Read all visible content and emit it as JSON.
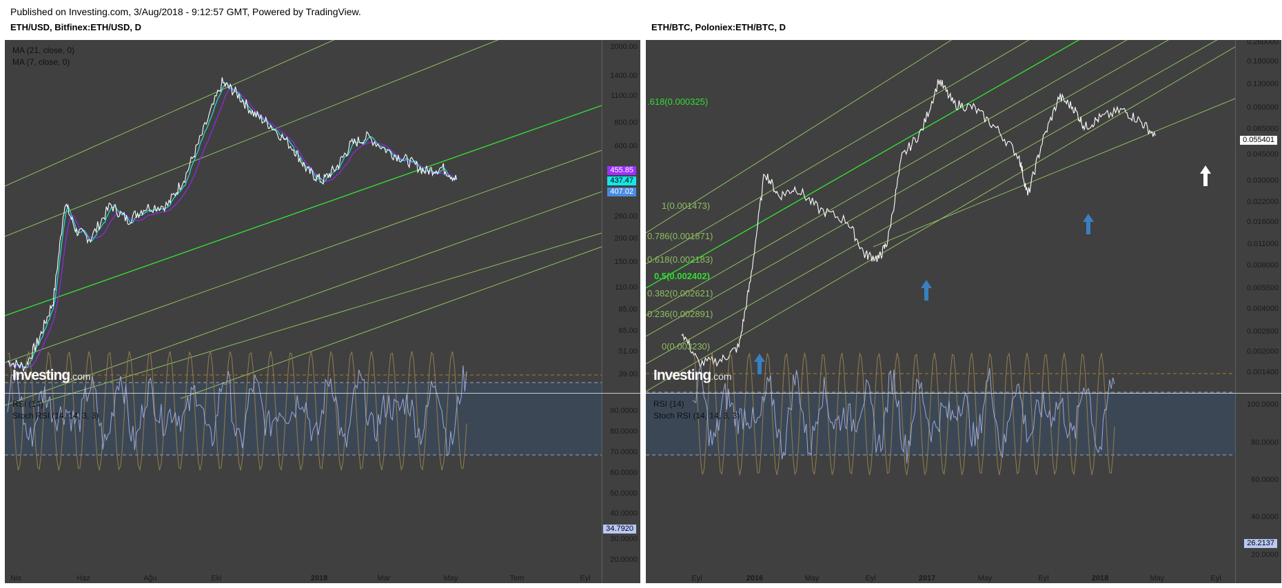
{
  "header": {
    "published": "Published on Investing.com, 3/Aug/2018 - 9:12:57 GMT, Powered by TradingView."
  },
  "logo": {
    "brand": "Investing",
    "suffix": ".com"
  },
  "colors": {
    "panel_bg": "#404040",
    "channel": "#8fbf5f",
    "channel_bright": "#33dd33",
    "price": "#ffffff",
    "ma21": "#8a2be2",
    "ma7": "#2ad4d4",
    "rsi_band": "#3c4756",
    "rsi_line": "#9aa9d8",
    "stoch_line": "#8c7a4e",
    "arrow": "#3a7fc0"
  },
  "left_chart": {
    "title": "ETH/USD, Bitfinex:ETH/USD, D",
    "legend": [
      "MA (21, close, 0)",
      "MA (7, close, 0)"
    ],
    "indicator_legend": [
      "RSI (14)",
      "Stoch RSI (14, 14, 3, 3)"
    ],
    "y_ticks": [
      "2000.00",
      "1400.00",
      "1100.00",
      "800.00",
      "600.00",
      "455.85",
      "437.47",
      "407.02",
      "260.00",
      "200.00",
      "150.00",
      "110.00",
      "85.00",
      "65.00",
      "51.00",
      "39.00"
    ],
    "price_tags": [
      {
        "label": "455.85",
        "color": "#9b30ff"
      },
      {
        "label": "437.47",
        "color": "#15e6e6"
      },
      {
        "label": "407.02",
        "color": "#4a8ae0"
      }
    ],
    "rsi_ticks": [
      "90.0000",
      "80.0000",
      "70.0000",
      "60.0000",
      "50.0000",
      "40.0000",
      "34.7920",
      "30.0000",
      "20.0000"
    ],
    "rsi_tag": "34.7920",
    "x_labels": [
      "Nis",
      "Haz",
      "Ağu",
      "Eki",
      "2018",
      "Mar",
      "May",
      "Tem",
      "Eyl"
    ]
  },
  "right_chart": {
    "title": "ETH/BTC, Poloniex:ETH/BTC, D",
    "indicator_legend": [
      "RSI (14)",
      "Stoch RSI (14, 14, 3, 3)"
    ],
    "y_ticks": [
      "0.260000",
      "0.180000",
      "0.130000",
      "0.090000",
      "0.065000",
      "0.055401",
      "0.045000",
      "0.030000",
      "0.022000",
      "0.016000",
      "0.011000",
      "0.008000",
      "0.005500",
      "0.004000",
      "0.002800",
      "0.002000",
      "0.001400"
    ],
    "price_tag": "0.055401",
    "fib_labels": [
      {
        "text": ".618(0.000325)",
        "bright": true
      },
      {
        "text": "1(0.001473)",
        "bright": false
      },
      {
        "text": "0.786(0.001871)",
        "bright": false
      },
      {
        "text": "0.618(0.002183)",
        "bright": false
      },
      {
        "text": "0.5(0.002402)",
        "bright": true
      },
      {
        "text": "0.382(0.002621)",
        "bright": false
      },
      {
        "text": "0.236(0.002891)",
        "bright": false
      },
      {
        "text": "0(0.003230)",
        "bright": false
      }
    ],
    "rsi_ticks": [
      "100.0000",
      "80.0000",
      "60.0000",
      "40.0000",
      "26.2137",
      "20.0000"
    ],
    "rsi_tag": "26.2137",
    "x_labels": [
      "Eyl",
      "2016",
      "May",
      "Eyl",
      "2017",
      "May",
      "Eyl",
      "2018",
      "May",
      "Eyl"
    ]
  },
  "chart_data": [
    {
      "type": "line",
      "title": "ETH/USD, Bitfinex:ETH/USD, D",
      "scale": "log",
      "x": [
        "Nis",
        "Haz",
        "Ağu",
        "Eki",
        "2018",
        "Mar",
        "May",
        "Tem",
        "Eyl"
      ],
      "series": [
        {
          "name": "ETH/USD",
          "points": [
            [
              0,
              46
            ],
            [
              0.3,
              43
            ],
            [
              0.55,
              60
            ],
            [
              0.8,
              95
            ],
            [
              1.0,
              310
            ],
            [
              1.2,
              220
            ],
            [
              1.45,
              200
            ],
            [
              1.8,
              300
            ],
            [
              2.1,
              250
            ],
            [
              2.4,
              290
            ],
            [
              2.8,
              300
            ],
            [
              3.1,
              420
            ],
            [
              3.4,
              700
            ],
            [
              3.75,
              1300
            ],
            [
              4.0,
              1150
            ],
            [
              4.3,
              900
            ],
            [
              4.6,
              780
            ],
            [
              5.0,
              590
            ],
            [
              5.25,
              450
            ],
            [
              5.5,
              400
            ],
            [
              5.75,
              470
            ],
            [
              6.0,
              620
            ],
            [
              6.3,
              680
            ],
            [
              6.7,
              560
            ],
            [
              7.0,
              510
            ],
            [
              7.3,
              450
            ],
            [
              7.6,
              470
            ],
            [
              7.85,
              407
            ]
          ]
        },
        {
          "name": "MA (21, close, 0)",
          "value": 455.85
        },
        {
          "name": "MA (7, close, 0)",
          "value": 437.47
        }
      ],
      "last": 407.02,
      "ylim": [
        39,
        2000
      ]
    },
    {
      "type": "line",
      "title": "ETH/BTC, Poloniex:ETH/BTC, D",
      "scale": "log",
      "x": [
        "Eyl",
        "2016",
        "May",
        "Eyl",
        "2017",
        "May",
        "Eyl",
        "2018",
        "May",
        "Eyl"
      ],
      "series": [
        {
          "name": "ETH/BTC",
          "points": [
            [
              0,
              0.0028
            ],
            [
              0.3,
              0.0017
            ],
            [
              0.7,
              0.0018
            ],
            [
              1.0,
              0.0022
            ],
            [
              1.2,
              0.006
            ],
            [
              1.45,
              0.032
            ],
            [
              1.7,
              0.022
            ],
            [
              2.0,
              0.025
            ],
            [
              2.4,
              0.018
            ],
            [
              2.9,
              0.015
            ],
            [
              3.2,
              0.009
            ],
            [
              3.45,
              0.0085
            ],
            [
              3.6,
              0.011
            ],
            [
              3.85,
              0.04
            ],
            [
              4.2,
              0.06
            ],
            [
              4.5,
              0.13
            ],
            [
              4.75,
              0.09
            ],
            [
              5.1,
              0.085
            ],
            [
              5.5,
              0.062
            ],
            [
              5.9,
              0.04
            ],
            [
              6.05,
              0.022
            ],
            [
              6.3,
              0.05
            ],
            [
              6.6,
              0.1
            ],
            [
              6.85,
              0.085
            ],
            [
              7.05,
              0.063
            ],
            [
              7.3,
              0.072
            ],
            [
              7.7,
              0.082
            ],
            [
              8.0,
              0.07
            ],
            [
              8.28,
              0.0554
            ]
          ]
        }
      ],
      "last": 0.055401,
      "ylim": [
        0.0014,
        0.26
      ]
    }
  ]
}
